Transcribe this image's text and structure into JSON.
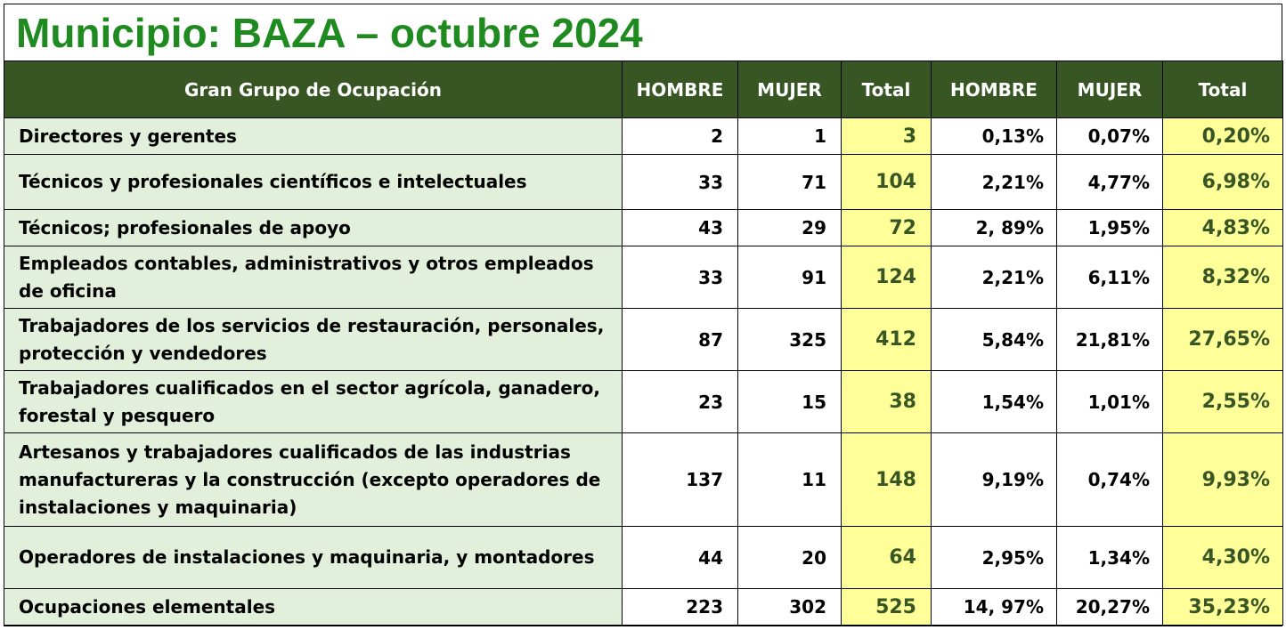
{
  "title": "Municipio: BAZA – octubre 2024",
  "headers": [
    "Gran Grupo de Ocupación",
    "HOMBRE",
    "MUJER",
    "Total",
    "HOMBRE",
    "MUJER",
    "Total"
  ],
  "rows": [
    {
      "group": "Directores y gerentes",
      "hombre": "2",
      "mujer": "1",
      "total": "3",
      "hombre_pct": "0,13%",
      "mujer_pct": "0,07%",
      "total_pct": "0,20%"
    },
    {
      "group": "Técnicos y profesionales científicos e intelectuales",
      "hombre": "33",
      "mujer": "71",
      "total": "104",
      "hombre_pct": "2,21%",
      "mujer_pct": "4,77%",
      "total_pct": "6,98%"
    },
    {
      "group": "Técnicos; profesionales de apoyo",
      "hombre": "43",
      "mujer": "29",
      "total": "72",
      "hombre_pct": "2, 89%",
      "mujer_pct": "1,95%",
      "total_pct": "4,83%"
    },
    {
      "group": "Empleados contables, administrativos y otros empleados de oficina",
      "hombre": "33",
      "mujer": "91",
      "total": "124",
      "hombre_pct": "2,21%",
      "mujer_pct": "6,11%",
      "total_pct": "8,32%"
    },
    {
      "group": "Trabajadores de los servicios de restauración, personales, protección y vendedores",
      "hombre": "87",
      "mujer": "325",
      "total": "412",
      "hombre_pct": "5,84%",
      "mujer_pct": "21,81%",
      "total_pct": "27,65%"
    },
    {
      "group": "Trabajadores cualificados en el sector agrícola, ganadero, forestal y pesquero",
      "hombre": "23",
      "mujer": "15",
      "total": "38",
      "hombre_pct": "1,54%",
      "mujer_pct": "1,01%",
      "total_pct": "2,55%"
    },
    {
      "group": "Artesanos y trabajadores cualificados de las industrias manufactureras y la construcción (excepto operadores de instalaciones y maquinaria)",
      "hombre": "137",
      "mujer": "11",
      "total": "148",
      "hombre_pct": "9,19%",
      "mujer_pct": "0,74%",
      "total_pct": "9,93%"
    },
    {
      "group": "Operadores de instalaciones y maquinaria, y montadores",
      "hombre": "44",
      "mujer": "20",
      "total": "64",
      "hombre_pct": "2,95%",
      "mujer_pct": "1,34%",
      "total_pct": "4,30%"
    },
    {
      "group": "Ocupaciones elementales",
      "hombre": "223",
      "mujer": "302",
      "total": "525",
      "hombre_pct": "14, 97%",
      "mujer_pct": "20,27%",
      "total_pct": "35,23%"
    }
  ],
  "colors": {
    "title": "#1f8a1f",
    "header_bg": "#375623",
    "label_bg": "#e2efda",
    "total_bg": "#ffff99",
    "total_text": "#375623"
  }
}
